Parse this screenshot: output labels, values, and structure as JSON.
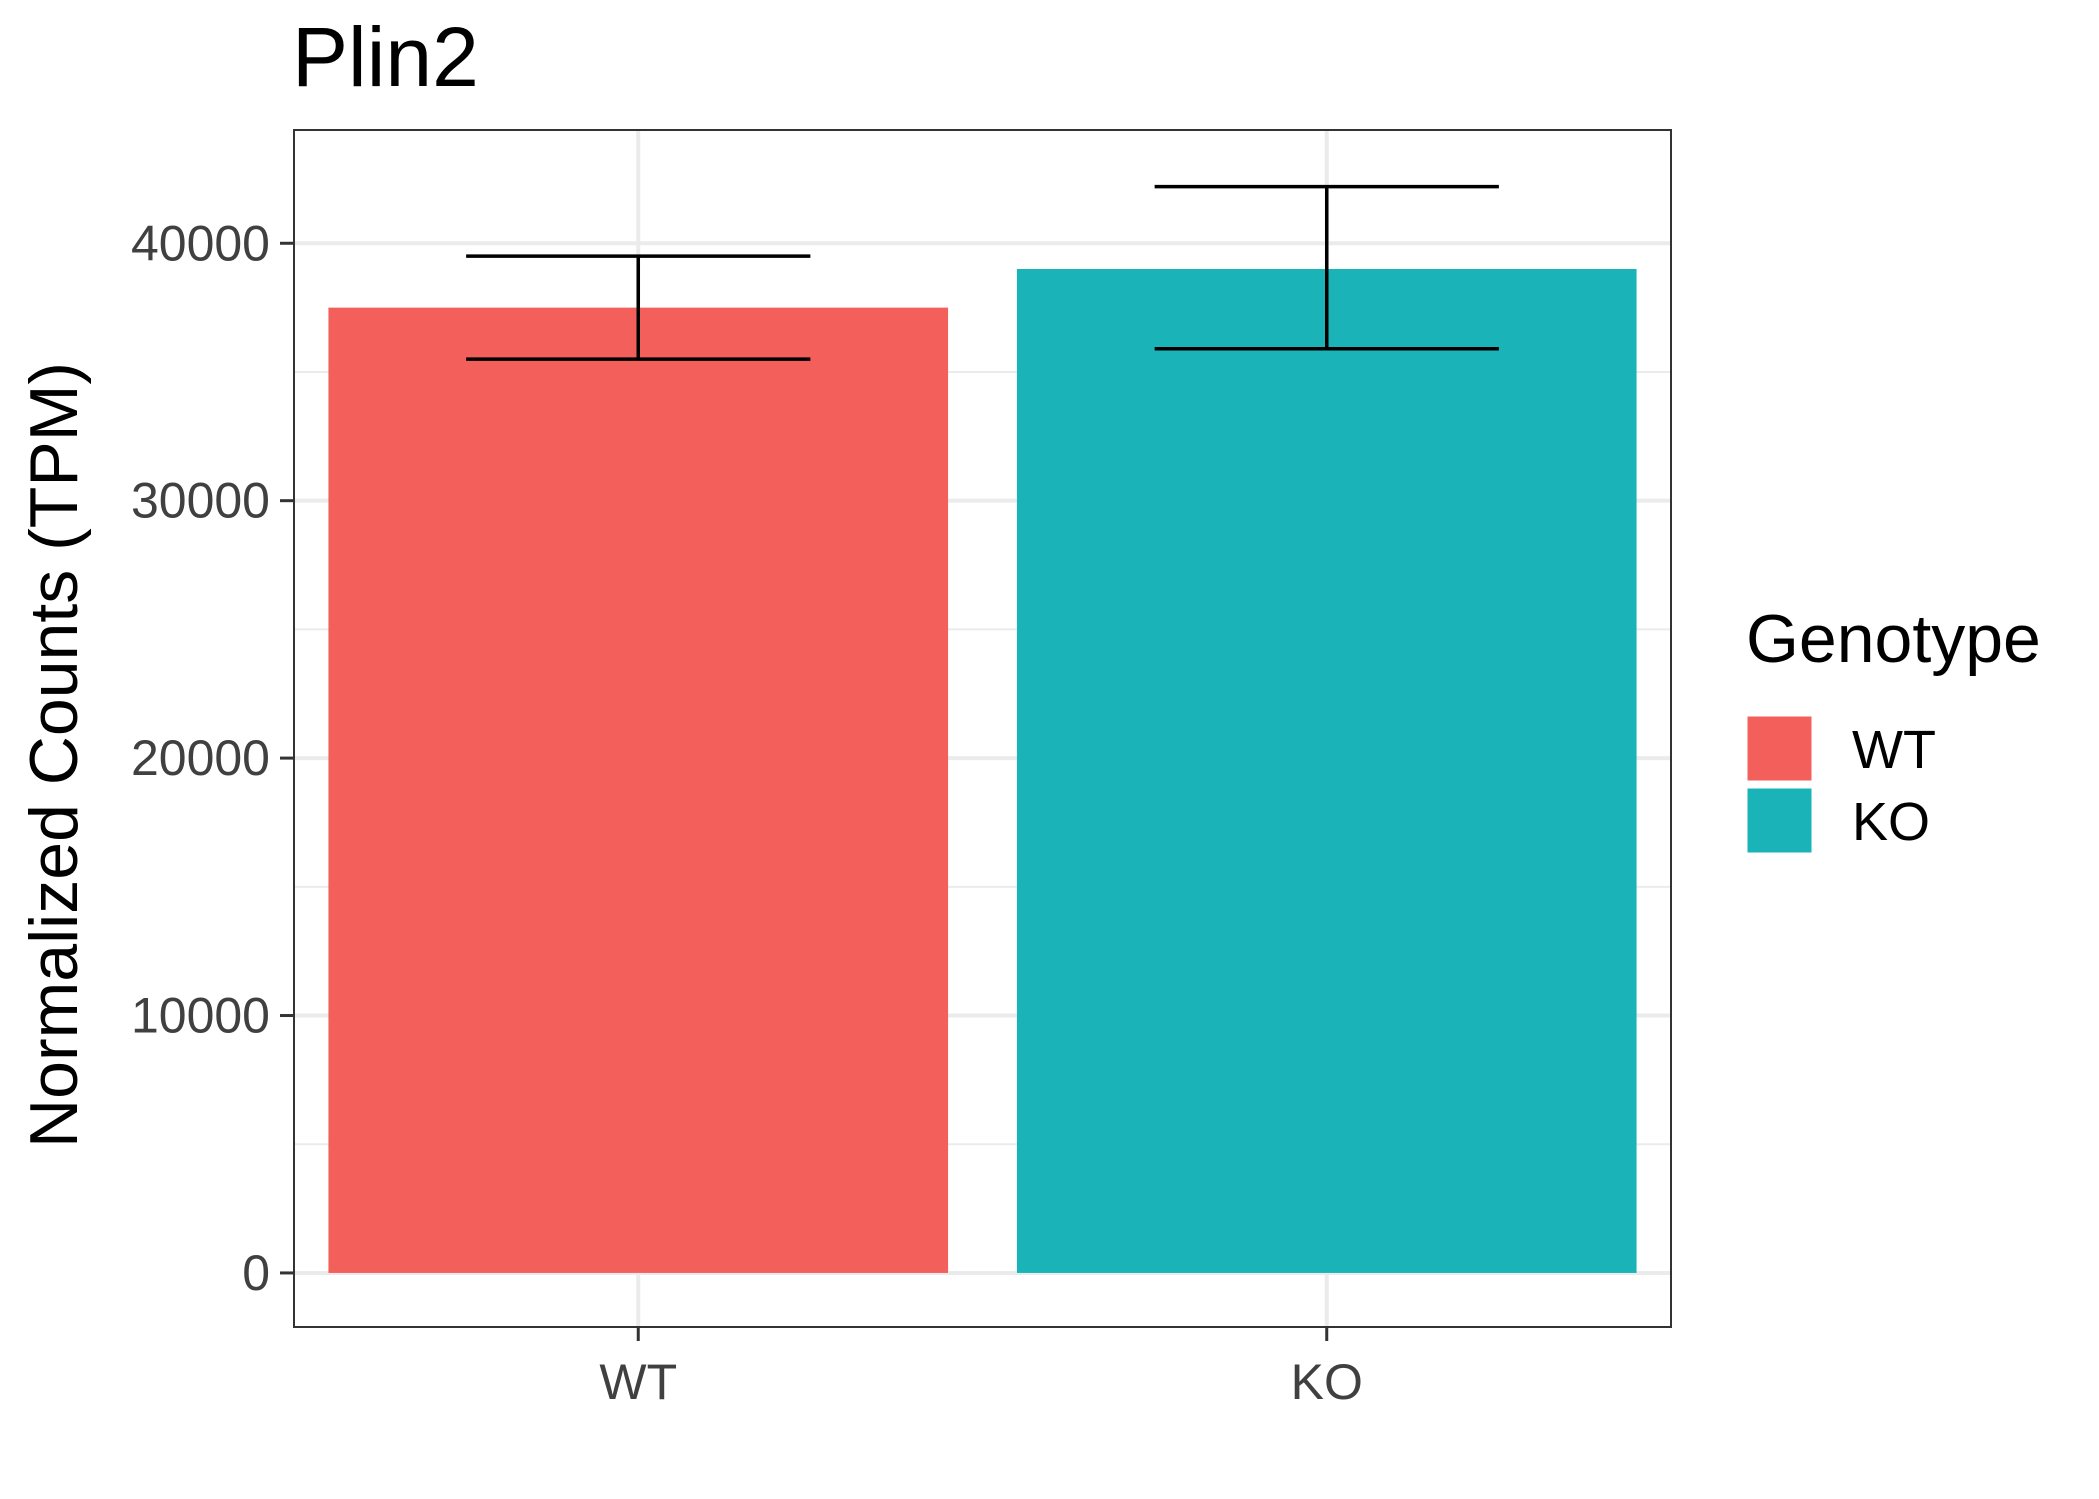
{
  "chart_data": {
    "type": "bar",
    "title": "Plin2",
    "xlabel": "",
    "ylabel": "Normalized Counts (TPM)",
    "categories": [
      "WT",
      "KO"
    ],
    "values": [
      37500,
      39000
    ],
    "error_bars": [
      {
        "low": 35500,
        "high": 39500
      },
      {
        "low": 35900,
        "high": 42200
      }
    ],
    "colors": [
      "#F3605B",
      "#1AB3B8"
    ],
    "ylim": [
      -2100,
      44400
    ],
    "yticks": [
      0,
      10000,
      20000,
      30000,
      40000
    ],
    "ytick_labels": [
      "0",
      "10000",
      "20000",
      "30000",
      "40000"
    ],
    "grid": true,
    "legend": {
      "title": "Genotype",
      "position": "right",
      "entries": [
        "WT",
        "KO"
      ]
    }
  }
}
